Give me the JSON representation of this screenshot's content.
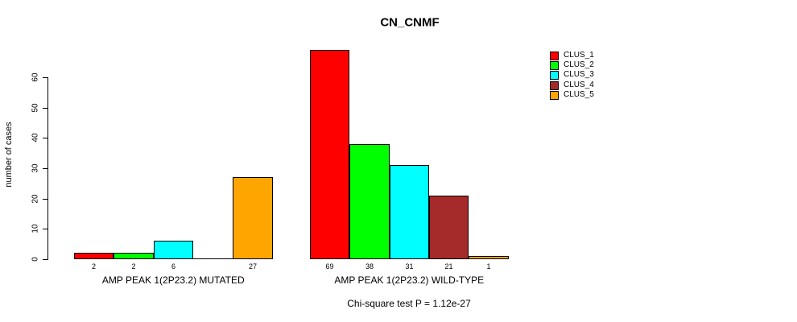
{
  "chart_data": {
    "type": "bar",
    "title": "CN_CNMF",
    "ylabel": "number of cases",
    "ylim": [
      0,
      69
    ],
    "yticks": [
      0,
      10,
      20,
      30,
      40,
      50,
      60
    ],
    "grid": false,
    "legend_position": "top-right-inside",
    "legend": [
      {
        "label": "CLUS_1",
        "color": "#FF0000"
      },
      {
        "label": "CLUS_2",
        "color": "#00FF00"
      },
      {
        "label": "CLUS_3",
        "color": "#00FFFF"
      },
      {
        "label": "CLUS_4",
        "color": "#A52A2A"
      },
      {
        "label": "CLUS_5",
        "color": "#FFA500"
      }
    ],
    "groups": [
      {
        "label": "AMP PEAK 1(2P23.2) MUTATED",
        "series_order": [
          "CLUS_1",
          "CLUS_2",
          "CLUS_3",
          "CLUS_4",
          "CLUS_5"
        ],
        "values": [
          2,
          2,
          6,
          0,
          27
        ],
        "value_labels": [
          "2",
          "2",
          "6",
          "",
          "27"
        ]
      },
      {
        "label": "AMP PEAK 1(2P23.2) WILD-TYPE",
        "series_order": [
          "CLUS_1",
          "CLUS_2",
          "CLUS_3",
          "CLUS_4",
          "CLUS_5"
        ],
        "values": [
          69,
          38,
          31,
          21,
          1
        ],
        "value_labels": [
          "69",
          "38",
          "31",
          "21",
          "1"
        ]
      }
    ],
    "footnote": "Chi-square test P = 1.12e-27"
  }
}
